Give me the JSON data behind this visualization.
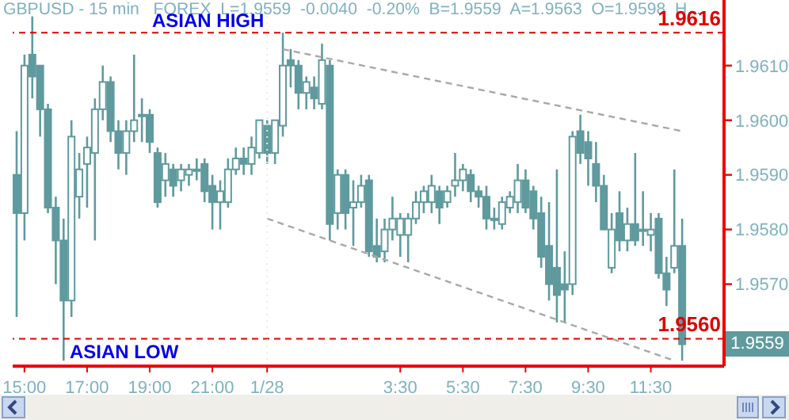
{
  "chart_data": {
    "type": "candlestick",
    "title": "GBPUSD - 15 min   FOREX  L=1.9559  -0.0040  -0.20%  B=1.9559  A=1.9563  O=1.9598  H...",
    "categories": [
      null,
      "15:00",
      null,
      null,
      null,
      null,
      null,
      null,
      null,
      "17:00",
      null,
      null,
      null,
      null,
      null,
      null,
      null,
      "19:00",
      null,
      null,
      null,
      null,
      null,
      null,
      null,
      "21:00",
      null,
      null,
      null,
      null,
      null,
      null,
      "1/28",
      null,
      null,
      null,
      null,
      null,
      null,
      null,
      null,
      null,
      null,
      null,
      null,
      null,
      null,
      null,
      null,
      "3:30",
      null,
      null,
      null,
      null,
      null,
      null,
      null,
      "5:30",
      null,
      null,
      null,
      null,
      null,
      null,
      null,
      "7:30",
      null,
      null,
      null,
      null,
      null,
      null,
      null,
      "9:30",
      null,
      null,
      null,
      null,
      null,
      null,
      null,
      "11:30",
      null,
      null,
      null,
      null
    ],
    "ohlc": [
      [
        1.959,
        1.9598,
        1.9564,
        1.9583
      ],
      [
        1.9583,
        1.9612,
        1.9578,
        1.961
      ],
      [
        1.9612,
        1.9619,
        1.9604,
        1.9608
      ],
      [
        1.961,
        1.961,
        1.9597,
        1.9602
      ],
      [
        1.9602,
        1.9603,
        1.9583,
        1.9584
      ],
      [
        1.9584,
        1.9586,
        1.957,
        1.9578
      ],
      [
        1.9578,
        1.9582,
        1.9556,
        1.9567
      ],
      [
        1.9567,
        1.96,
        1.9564,
        1.9597
      ],
      [
        1.9586,
        1.9594,
        1.9582,
        1.9591
      ],
      [
        1.9592,
        1.9597,
        1.9584,
        1.9595
      ],
      [
        1.9594,
        1.9604,
        1.9578,
        1.9602
      ],
      [
        1.9602,
        1.961,
        1.96,
        1.9607
      ],
      [
        1.9607,
        1.9608,
        1.9596,
        1.9598
      ],
      [
        1.9598,
        1.96,
        1.9591,
        1.9594
      ],
      [
        1.9594,
        1.96,
        1.959,
        1.9598
      ],
      [
        1.9598,
        1.9612,
        1.9596,
        1.96
      ],
      [
        1.9601,
        1.9604,
        1.9596,
        1.9601
      ],
      [
        1.9601,
        1.9602,
        1.9594,
        1.9596
      ],
      [
        1.9594,
        1.9595,
        1.9584,
        1.9585
      ],
      [
        1.9589,
        1.9594,
        1.9586,
        1.9592
      ],
      [
        1.9591,
        1.9592,
        1.9586,
        1.9588
      ],
      [
        1.9589,
        1.9592,
        1.9587,
        1.9591
      ],
      [
        1.959,
        1.9592,
        1.9588,
        1.9591
      ],
      [
        1.9591,
        1.9593,
        1.9589,
        1.9591
      ],
      [
        1.9592,
        1.9593,
        1.9585,
        1.9587
      ],
      [
        1.9588,
        1.959,
        1.958,
        1.9585
      ],
      [
        1.9585,
        1.9589,
        1.958,
        1.9587
      ],
      [
        1.9585,
        1.9593,
        1.9584,
        1.9591
      ],
      [
        1.9591,
        1.9595,
        1.959,
        1.9593
      ],
      [
        1.9593,
        1.9595,
        1.959,
        1.9592
      ],
      [
        1.9592,
        1.9597,
        1.959,
        1.9595
      ],
      [
        1.9594,
        1.96,
        1.9593,
        1.96
      ],
      [
        1.9599,
        1.96,
        1.9592,
        1.9594
      ],
      [
        1.9594,
        1.96,
        1.9592,
        1.96
      ],
      [
        1.9599,
        1.9616,
        1.9597,
        1.961
      ],
      [
        1.9611,
        1.9613,
        1.9606,
        1.961
      ],
      [
        1.961,
        1.9611,
        1.9602,
        1.9605
      ],
      [
        1.9605,
        1.9608,
        1.9602,
        1.9607
      ],
      [
        1.9606,
        1.9608,
        1.9602,
        1.9604
      ],
      [
        1.9603,
        1.9614,
        1.9602,
        1.9611
      ],
      [
        1.961,
        1.9611,
        1.9578,
        1.9581
      ],
      [
        1.9583,
        1.9591,
        1.958,
        1.959
      ],
      [
        1.959,
        1.9591,
        1.958,
        1.9583
      ],
      [
        1.9584,
        1.9589,
        1.9577,
        1.9585
      ],
      [
        1.9585,
        1.959,
        1.9584,
        1.9588
      ],
      [
        1.9589,
        1.959,
        1.9575,
        1.9576
      ],
      [
        1.9577,
        1.9582,
        1.9574,
        1.9575
      ],
      [
        1.9576,
        1.9582,
        1.9574,
        1.958
      ],
      [
        1.958,
        1.9586,
        1.9578,
        1.9582
      ],
      [
        1.9579,
        1.9583,
        1.9575,
        1.9582
      ],
      [
        1.9579,
        1.9583,
        1.9574,
        1.9582
      ],
      [
        1.9582,
        1.9587,
        1.9581,
        1.9585
      ],
      [
        1.9585,
        1.9588,
        1.9583,
        1.9587
      ],
      [
        1.9585,
        1.959,
        1.9583,
        1.9588
      ],
      [
        1.9587,
        1.9588,
        1.9581,
        1.9584
      ],
      [
        1.9585,
        1.9588,
        1.9584,
        1.9587
      ],
      [
        1.9588,
        1.9594,
        1.9586,
        1.9589
      ],
      [
        1.9589,
        1.9592,
        1.9587,
        1.9591
      ],
      [
        1.959,
        1.9591,
        1.9585,
        1.9587
      ],
      [
        1.9587,
        1.9588,
        1.9584,
        1.9586
      ],
      [
        1.9586,
        1.9588,
        1.958,
        1.9582
      ],
      [
        1.9582,
        1.9584,
        1.958,
        1.9582
      ],
      [
        1.9581,
        1.9586,
        1.958,
        1.9585
      ],
      [
        1.9584,
        1.9587,
        1.9583,
        1.9586
      ],
      [
        1.9585,
        1.9592,
        1.9583,
        1.9589
      ],
      [
        1.9589,
        1.9591,
        1.9583,
        1.9584
      ],
      [
        1.9587,
        1.9588,
        1.958,
        1.9582
      ],
      [
        1.9583,
        1.9586,
        1.9573,
        1.9575
      ],
      [
        1.9577,
        1.9585,
        1.9567,
        1.957
      ],
      [
        1.9573,
        1.9591,
        1.9563,
        1.9568
      ],
      [
        1.957,
        1.9576,
        1.9563,
        1.9569
      ],
      [
        1.957,
        1.9598,
        1.9568,
        1.9597
      ],
      [
        1.9598,
        1.9601,
        1.9592,
        1.9594
      ],
      [
        1.9596,
        1.9598,
        1.9588,
        1.9593
      ],
      [
        1.9592,
        1.9596,
        1.9585,
        1.9588
      ],
      [
        1.9588,
        1.959,
        1.958,
        1.958
      ],
      [
        1.9573,
        1.9583,
        1.9572,
        1.958
      ],
      [
        1.9583,
        1.9587,
        1.9576,
        1.9578
      ],
      [
        1.9578,
        1.9584,
        1.9576,
        1.9581
      ],
      [
        1.9581,
        1.9594,
        1.9577,
        1.9578
      ],
      [
        1.958,
        1.9587,
        1.9577,
        1.958
      ],
      [
        1.9579,
        1.9583,
        1.9576,
        1.958
      ],
      [
        1.9582,
        1.9583,
        1.9571,
        1.9572
      ],
      [
        1.9572,
        1.9575,
        1.9566,
        1.9569
      ],
      [
        1.9573,
        1.9591,
        1.9572,
        1.9577
      ],
      [
        1.9577,
        1.9582,
        1.9556,
        1.9559
      ]
    ],
    "color": "#5f9a9e",
    "series": [
      {
        "type": "line",
        "values": [
          null,
          null,
          null,
          null,
          null,
          null,
          null,
          null,
          null,
          null,
          null,
          null,
          null,
          null,
          null,
          null,
          null,
          null,
          null,
          null,
          null,
          null,
          null,
          null,
          null,
          null,
          null,
          null,
          null,
          null,
          null,
          null,
          null,
          null,
          1.9613,
          null,
          null,
          null,
          null,
          null,
          null,
          null,
          null,
          null,
          null,
          null,
          null,
          null,
          null,
          null,
          null,
          null,
          null,
          null,
          null,
          null,
          null,
          null,
          null,
          null,
          null,
          null,
          null,
          null,
          null,
          null,
          null,
          null,
          null,
          null,
          null,
          null,
          null,
          null,
          null,
          null,
          null,
          null,
          null,
          null,
          null,
          null,
          null,
          null,
          null,
          1.9598
        ],
        "color": "#a8a8a8"
      },
      {
        "type": "line",
        "values": [
          null,
          null,
          null,
          null,
          null,
          null,
          null,
          null,
          null,
          null,
          null,
          null,
          null,
          null,
          null,
          null,
          null,
          null,
          null,
          null,
          null,
          null,
          null,
          null,
          null,
          null,
          null,
          null,
          null,
          null,
          null,
          null,
          1.9582,
          null,
          null,
          null,
          null,
          null,
          null,
          null,
          null,
          null,
          null,
          null,
          null,
          null,
          null,
          null,
          null,
          null,
          null,
          null,
          null,
          null,
          null,
          null,
          null,
          null,
          null,
          null,
          null,
          null,
          null,
          null,
          null,
          null,
          null,
          null,
          null,
          null,
          null,
          null,
          null,
          null,
          null,
          null,
          null,
          null,
          null,
          null,
          null,
          null,
          null,
          null,
          1.9556,
          null
        ],
        "color": "#a8a8a8"
      }
    ],
    "line_style": "dashed",
    "marker": "none",
    "ylim": [
      1.9555,
      1.9622
    ],
    "yticks": [
      {
        "value": 1.956,
        "label": null
      },
      {
        "value": 1.957,
        "label": "1.9570"
      },
      {
        "value": 1.958,
        "label": "1.9580"
      },
      {
        "value": 1.959,
        "label": "1.9590"
      },
      {
        "value": 1.96,
        "label": "1.9600"
      },
      {
        "value": 1.961,
        "label": "1.9610"
      }
    ],
    "ref_lines": [
      {
        "axis": "y",
        "value": 1.9616,
        "label": "ASIAN HIGH",
        "color": "#e00000",
        "line_style": "dashed"
      },
      {
        "axis": "y",
        "value": 1.956,
        "label": "ASIAN LOW",
        "color": "#e00000",
        "line_style": "dashed"
      },
      {
        "axis": "x",
        "value": "1/28",
        "color": "#ecece0",
        "line_style": "dotted"
      }
    ],
    "annotations": [
      {
        "text": "1.9616",
        "y": 1.9616
      },
      {
        "text": "1.9560",
        "y": 1.956
      },
      "1.9559"
    ],
    "legend": false
  }
}
